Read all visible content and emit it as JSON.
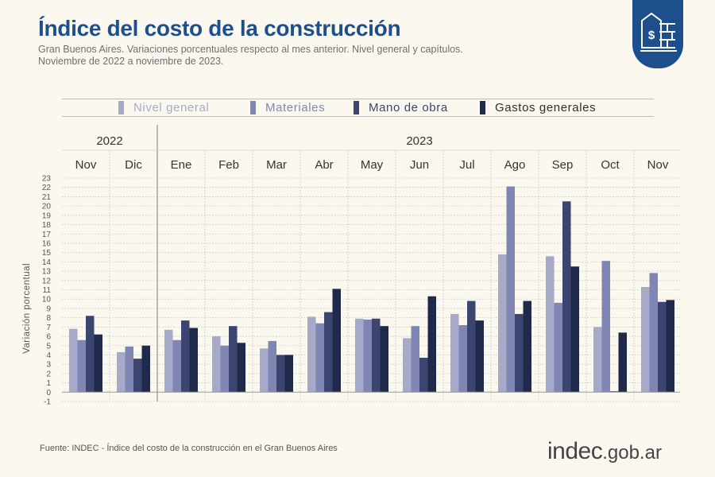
{
  "header": {
    "title": "Índice del costo de la construcción",
    "subtitle_line1": "Gran Buenos Aires. Variaciones porcentuales respecto al mes anterior. Nivel general y capítulos.",
    "subtitle_line2": "Noviembre de 2022 a noviembre de 2023."
  },
  "badge": {
    "icon": "building-dollar-icon",
    "color": "#1d4f8c"
  },
  "source": "Fuente: INDEC - Índice del costo de la construcción en el Gran Buenos Aires",
  "logo": {
    "main": "indec",
    "tld": ".gob.ar"
  },
  "chart_data": {
    "type": "bar",
    "years": [
      {
        "label": "2022",
        "start": 0,
        "end": 1
      },
      {
        "label": "2023",
        "start": 2,
        "end": 12
      }
    ],
    "categories": [
      "Nov",
      "Dic",
      "Ene",
      "Feb",
      "Mar",
      "Abr",
      "May",
      "Jun",
      "Jul",
      "Ago",
      "Sep",
      "Oct",
      "Nov"
    ],
    "series": [
      {
        "name": "Nivel general",
        "color": "#a6a9c7",
        "values": [
          6.8,
          4.3,
          6.7,
          6.0,
          4.7,
          8.1,
          7.9,
          5.8,
          8.4,
          14.8,
          14.6,
          7.0,
          11.3
        ]
      },
      {
        "name": "Materiales",
        "color": "#7f86b4",
        "values": [
          5.6,
          4.9,
          5.6,
          5.0,
          5.5,
          7.4,
          7.8,
          7.1,
          7.2,
          22.1,
          9.6,
          14.1,
          12.8
        ]
      },
      {
        "name": "Mano de obra",
        "color": "#3c4570",
        "values": [
          8.2,
          3.6,
          7.7,
          7.1,
          4.0,
          8.6,
          7.9,
          3.7,
          9.8,
          8.4,
          20.5,
          0.1,
          9.7
        ]
      },
      {
        "name": "Gastos generales",
        "color": "#1f2a4a",
        "values": [
          6.2,
          5.0,
          6.9,
          5.3,
          4.0,
          11.1,
          7.1,
          10.3,
          7.7,
          9.8,
          13.5,
          6.4,
          9.9
        ]
      }
    ],
    "ylabel": "Variación porcentual",
    "ylim": [
      -1,
      23
    ],
    "yticks": [
      "-1",
      "0",
      "1",
      "2",
      "3",
      "4",
      "5",
      "6",
      "7",
      "8",
      "9",
      "10",
      "11",
      "12",
      "13",
      "14",
      "15",
      "16",
      "17",
      "18",
      "19",
      "20",
      "21",
      "22",
      "23"
    ],
    "grid": true,
    "legend_position": "top"
  }
}
